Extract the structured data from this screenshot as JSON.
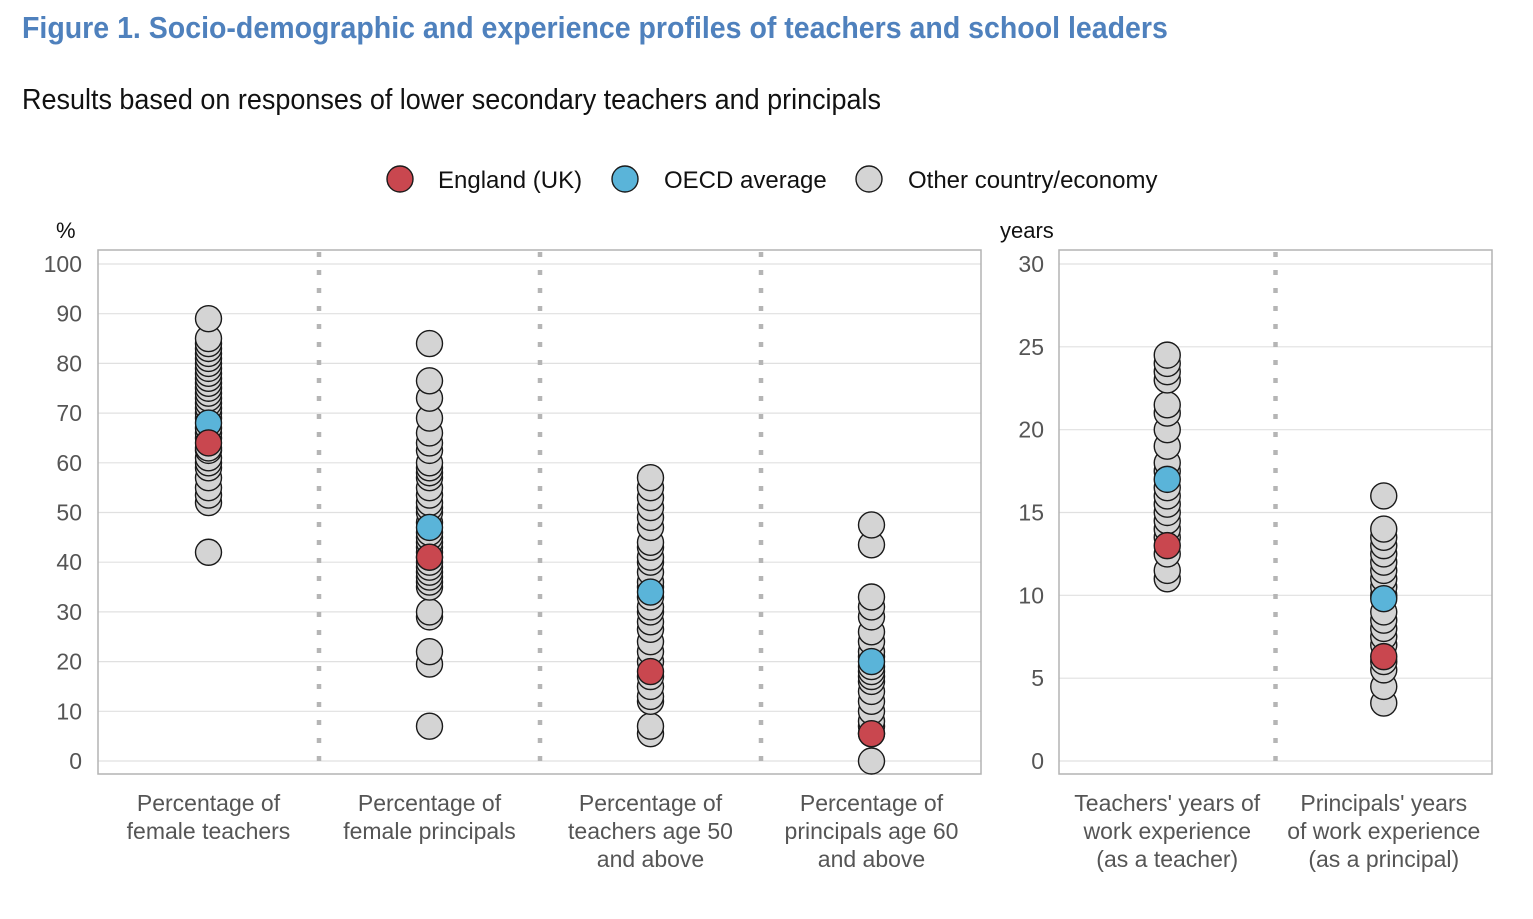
{
  "title": "Figure 1. Socio-demographic and experience profiles of teachers and school leaders",
  "subtitle": "Results based on responses of lower secondary teachers and principals",
  "legend": [
    {
      "label": "England (UK)",
      "color": "#c9474f"
    },
    {
      "label": "OECD average",
      "color": "#5ab4d9"
    },
    {
      "label": "Other country/economy",
      "color": "#d4d4d4"
    }
  ],
  "chart_data": [
    {
      "type": "scatter",
      "ylabel": "%",
      "ylim": [
        0,
        100
      ],
      "yticks": [
        0,
        10,
        20,
        30,
        40,
        50,
        60,
        70,
        80,
        90,
        100
      ],
      "grid": true,
      "legend_position": "top",
      "categories": [
        [
          "Percentage of",
          "female teachers"
        ],
        [
          "Percentage of",
          "female principals"
        ],
        [
          "Percentage of",
          "teachers age 50",
          "and above"
        ],
        [
          "Percentage of",
          "principals age 60",
          "and above"
        ]
      ],
      "series": [
        {
          "name": "Other country/economy",
          "values": [
            [
              42,
              52,
              53.5,
              55,
              57,
              59,
              60,
              61,
              62.5,
              63,
              65,
              66,
              67,
              69,
              70,
              71,
              72,
              73,
              74,
              75,
              76,
              77,
              78,
              79,
              80,
              81,
              82,
              83,
              84,
              85,
              89
            ],
            [
              7,
              19.5,
              22,
              29,
              30,
              35,
              36,
              37,
              38,
              39,
              40,
              41,
              42,
              43,
              44,
              45,
              46,
              48,
              50,
              51,
              52,
              53.5,
              55,
              57,
              58,
              59,
              60,
              62.5,
              64,
              66,
              69,
              73,
              76.5,
              84
            ],
            [
              5.5,
              7,
              12,
              13,
              15,
              17,
              20,
              22,
              24,
              26.5,
              28,
              30,
              31,
              33,
              35,
              36,
              38,
              40,
              41,
              43,
              44,
              47,
              49,
              51,
              53,
              55,
              57
            ],
            [
              0,
              5.5,
              7,
              8,
              10,
              12,
              14,
              16,
              17,
              18,
              19,
              21,
              22,
              24,
              26,
              29,
              31,
              33,
              43.5,
              47.5
            ]
          ]
        },
        {
          "name": "OECD average",
          "values": [
            68,
            47,
            34,
            20
          ]
        },
        {
          "name": "England (UK)",
          "values": [
            64,
            41,
            18,
            5.5
          ]
        }
      ]
    },
    {
      "type": "scatter",
      "ylabel": "years",
      "ylim": [
        0,
        30
      ],
      "yticks": [
        0,
        5,
        10,
        15,
        20,
        25,
        30
      ],
      "grid": true,
      "categories": [
        [
          "Teachers' years of",
          "work experience",
          "(as a teacher)"
        ],
        [
          "Principals' years",
          "of work experience",
          "(as a principal)"
        ]
      ],
      "series": [
        {
          "name": "Other country/economy",
          "values": [
            [
              11,
              11.5,
              12.5,
              13.5,
              14,
              14.5,
              15,
              15.5,
              16,
              16.5,
              17.5,
              18,
              19,
              20,
              21,
              21.5,
              23,
              23.5,
              24,
              24.5
            ],
            [
              3.5,
              4.5,
              5.5,
              6,
              7,
              7.5,
              8,
              8.5,
              9,
              10,
              10.5,
              11,
              11.5,
              12,
              12.5,
              13,
              13.5,
              14,
              16
            ]
          ]
        },
        {
          "name": "OECD average",
          "values": [
            17,
            9.8
          ]
        },
        {
          "name": "England (UK)",
          "values": [
            13,
            6.3
          ]
        }
      ]
    }
  ]
}
